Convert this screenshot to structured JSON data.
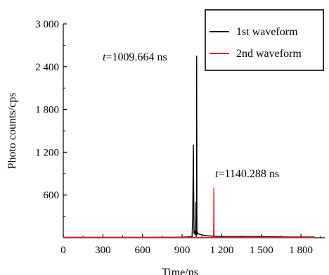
{
  "chart_data": {
    "type": "line",
    "title": "",
    "xlabel": "Time/ns",
    "ylabel": "Photo counts/cps",
    "xlim": [
      0,
      1980
    ],
    "ylim": [
      0,
      3000
    ],
    "x_ticks": [
      0,
      300,
      600,
      900,
      1200,
      1500,
      1800
    ],
    "x_tick_labels": [
      "0",
      "300",
      "600",
      "900",
      "1 200",
      "1 500",
      "1 800"
    ],
    "y_ticks": [
      600,
      1200,
      1800,
      2400,
      3000
    ],
    "y_tick_labels": [
      "600",
      "1 200",
      "1 800",
      "2 400",
      "3 000"
    ],
    "grid": false,
    "legend_position": "top-right",
    "series": [
      {
        "name": "1st waveform",
        "color": "#000000",
        "x": [
          0,
          300,
          600,
          900,
          975,
          980,
          985,
          990,
          995,
          998,
          1002,
          1005,
          1007,
          1009,
          1010,
          1012,
          1015,
          1020,
          1030,
          1050,
          1080,
          1140,
          1200,
          1300,
          1500,
          1700,
          1900
        ],
        "y": [
          5,
          5,
          5,
          8,
          15,
          300,
          1300,
          60,
          80,
          40,
          100,
          500,
          20,
          600,
          2550,
          40,
          80,
          60,
          50,
          40,
          30,
          20,
          15,
          15,
          15,
          10,
          10
        ]
      },
      {
        "name": "2nd waveform",
        "color": "#e0202a",
        "x": [
          0,
          300,
          600,
          900,
          1100,
          1135,
          1138,
          1140,
          1142,
          1145,
          1200,
          1500,
          1900
        ],
        "y": [
          5,
          5,
          5,
          5,
          5,
          5,
          50,
          700,
          40,
          5,
          5,
          5,
          5
        ]
      }
    ],
    "annotations": [
      {
        "t_italic": "t",
        "text": "=1009.664 ns",
        "x": 1009.664,
        "y": 2550
      },
      {
        "t_italic": "t",
        "text": "=1140.288 ns",
        "x": 1140.288,
        "y": 700
      }
    ]
  }
}
